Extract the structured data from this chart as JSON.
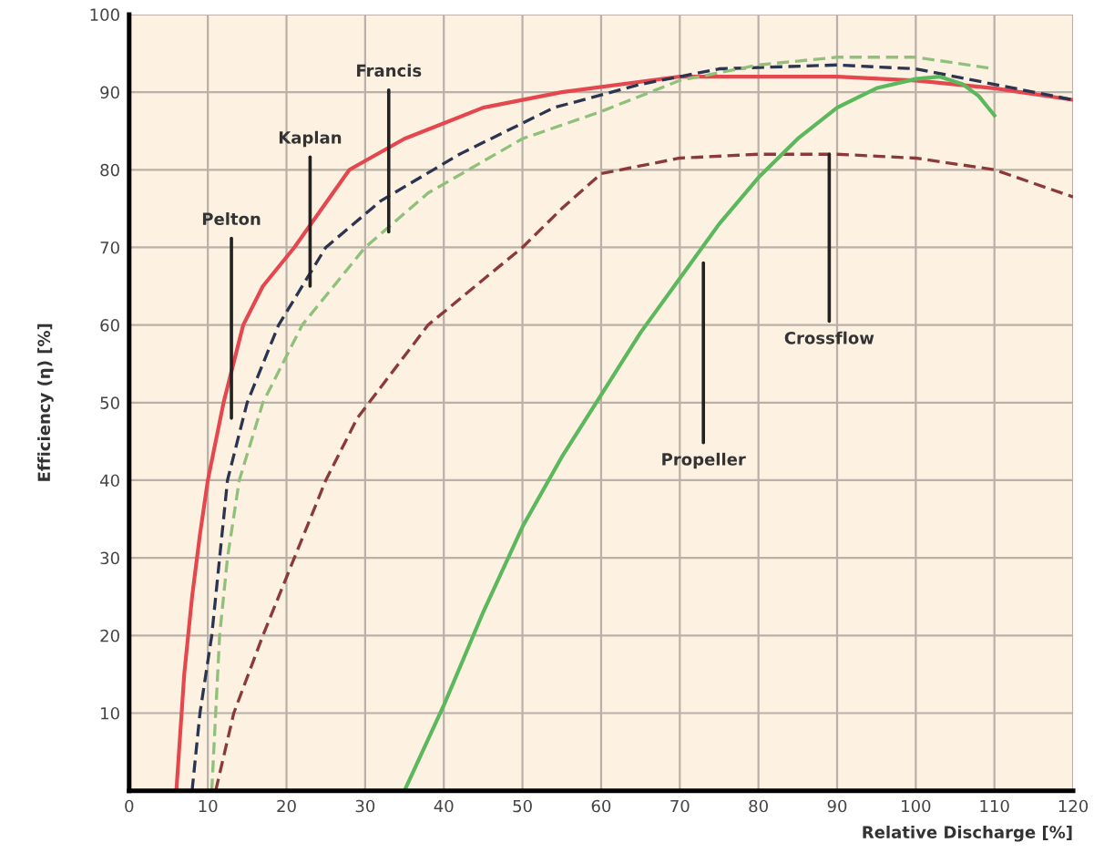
{
  "chart_data": {
    "type": "line",
    "xlabel": "Relative Discharge [%]",
    "ylabel": "Efficiency (η) [%]",
    "xlim": [
      0,
      120
    ],
    "ylim": [
      0,
      100
    ],
    "xticks": [
      0,
      10,
      20,
      30,
      40,
      50,
      60,
      70,
      80,
      90,
      100,
      110,
      120
    ],
    "yticks": [
      10,
      20,
      30,
      40,
      50,
      60,
      70,
      80,
      90,
      100
    ],
    "grid": true,
    "marker": "none",
    "series": [
      {
        "color": "#e5474f",
        "line_style": "solid",
        "x": [
          6,
          7,
          8,
          9,
          10,
          12,
          14.5,
          17,
          21,
          28,
          35,
          45,
          55,
          70,
          90,
          100,
          110,
          120
        ],
        "values": [
          0,
          15,
          25,
          33,
          40,
          50,
          60,
          65,
          70,
          80,
          84,
          88,
          90,
          92,
          92,
          91.5,
          90.5,
          89
        ]
      },
      {
        "color": "#2b3550",
        "line_style": "dashed",
        "x": [
          8,
          9,
          10.5,
          11.5,
          12.5,
          15,
          19,
          25,
          32,
          42,
          54,
          65,
          75,
          90,
          100,
          110,
          120
        ],
        "values": [
          0,
          10,
          20,
          30,
          40,
          50,
          60,
          70,
          76,
          82,
          88,
          91,
          93,
          93.5,
          93,
          91,
          89
        ]
      },
      {
        "color": "#8fc17a",
        "line_style": "dashed",
        "x": [
          10.5,
          11,
          11.5,
          12.5,
          14,
          17,
          22,
          30,
          38,
          50,
          60,
          70,
          80,
          90,
          100,
          110
        ],
        "values": [
          0,
          10,
          20,
          30,
          40,
          50,
          60,
          70,
          77,
          84,
          87.5,
          91.5,
          93.5,
          94.5,
          94.5,
          93
        ]
      },
      {
        "color": "#8b3a3a",
        "line_style": "dashed",
        "x": [
          11,
          13.3,
          17,
          21,
          25,
          29,
          38,
          50,
          55,
          60,
          70,
          80,
          90,
          100,
          110,
          120
        ],
        "values": [
          0,
          10,
          20,
          30,
          40,
          48,
          60,
          70,
          75,
          79.5,
          81.5,
          82,
          82,
          81.5,
          80,
          76.5
        ]
      },
      {
        "color": "#5cb85c",
        "line_style": "solid",
        "x": [
          35,
          40,
          45,
          50,
          55,
          60,
          65,
          70,
          75,
          80,
          85,
          90,
          95,
          100,
          103,
          106,
          108,
          110
        ],
        "values": [
          0,
          11,
          23,
          34,
          43,
          51,
          59,
          66,
          73,
          79,
          84,
          88,
          90.5,
          91.7,
          92,
          91,
          89.5,
          87
        ]
      }
    ],
    "annotations": [
      {
        "text": "Pelton",
        "x": 13,
        "y": 48
      },
      {
        "text": "Kaplan",
        "x": 23,
        "y": 65
      },
      {
        "text": "Francis",
        "x": 33,
        "y": 72
      },
      {
        "text": "Propeller",
        "x": 73,
        "y": 68
      },
      {
        "text": "Crossflow",
        "x": 89,
        "y": 82
      }
    ]
  }
}
